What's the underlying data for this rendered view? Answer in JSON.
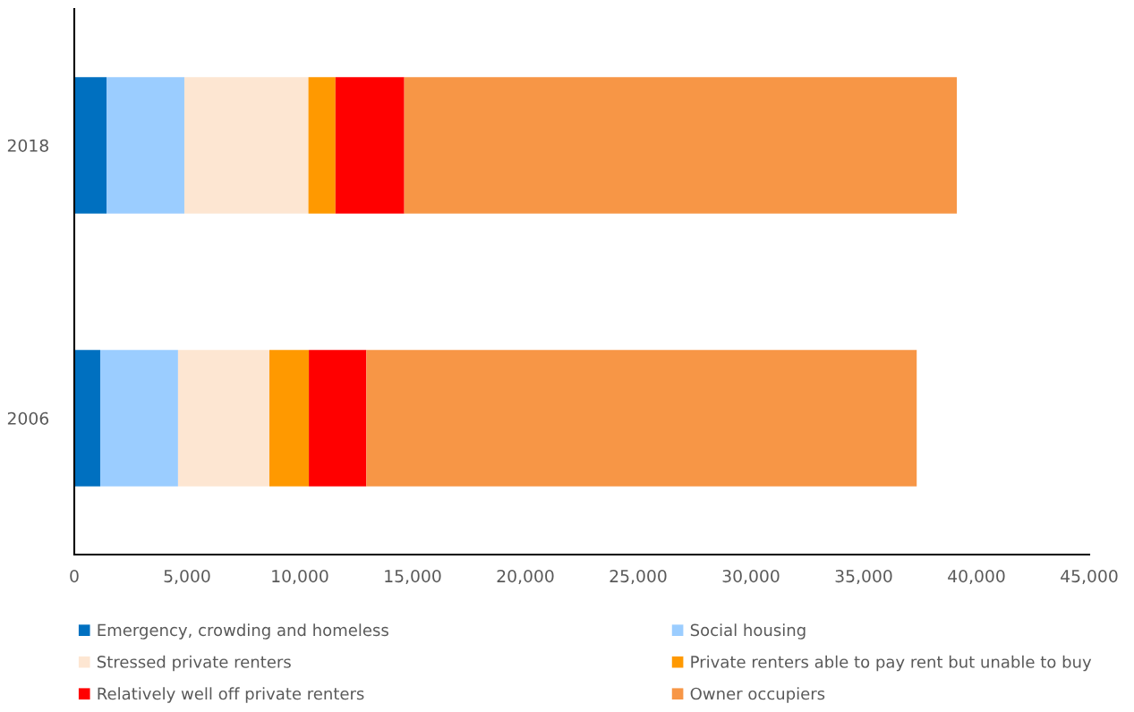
{
  "chart_data": {
    "type": "bar",
    "orientation": "horizontal",
    "stacked": true,
    "categories": [
      "2018",
      "2006"
    ],
    "series": [
      {
        "name": "Emergency, crowding and homeless",
        "color": "#0070c0",
        "values": [
          1430,
          1150
        ]
      },
      {
        "name": "Social housing",
        "color": "#9bcdff",
        "values": [
          3450,
          3450
        ]
      },
      {
        "name": "Stressed private renters",
        "color": "#fde6d2",
        "values": [
          5500,
          4050
        ]
      },
      {
        "name": "Private renters able to pay rent but unable to buy",
        "color": "#ff9900",
        "values": [
          1200,
          1750
        ]
      },
      {
        "name": "Relatively well off private renters",
        "color": "#ff0000",
        "values": [
          3050,
          2550
        ]
      },
      {
        "name": "Owner occupiers",
        "color": "#f79646",
        "values": [
          24500,
          24400
        ]
      }
    ],
    "xlim": [
      0,
      45000
    ],
    "xticks": [
      {
        "value": 0,
        "label": "0"
      },
      {
        "value": 5000,
        "label": "5,000"
      },
      {
        "value": 10000,
        "label": "10,000"
      },
      {
        "value": 15000,
        "label": "15,000"
      },
      {
        "value": 20000,
        "label": "20,000"
      },
      {
        "value": 25000,
        "label": "25,000"
      },
      {
        "value": 30000,
        "label": "30,000"
      },
      {
        "value": 35000,
        "label": "35,000"
      },
      {
        "value": 40000,
        "label": "40,000"
      },
      {
        "value": 45000,
        "label": "45,000"
      }
    ],
    "grid": false,
    "legend": "bottom"
  }
}
